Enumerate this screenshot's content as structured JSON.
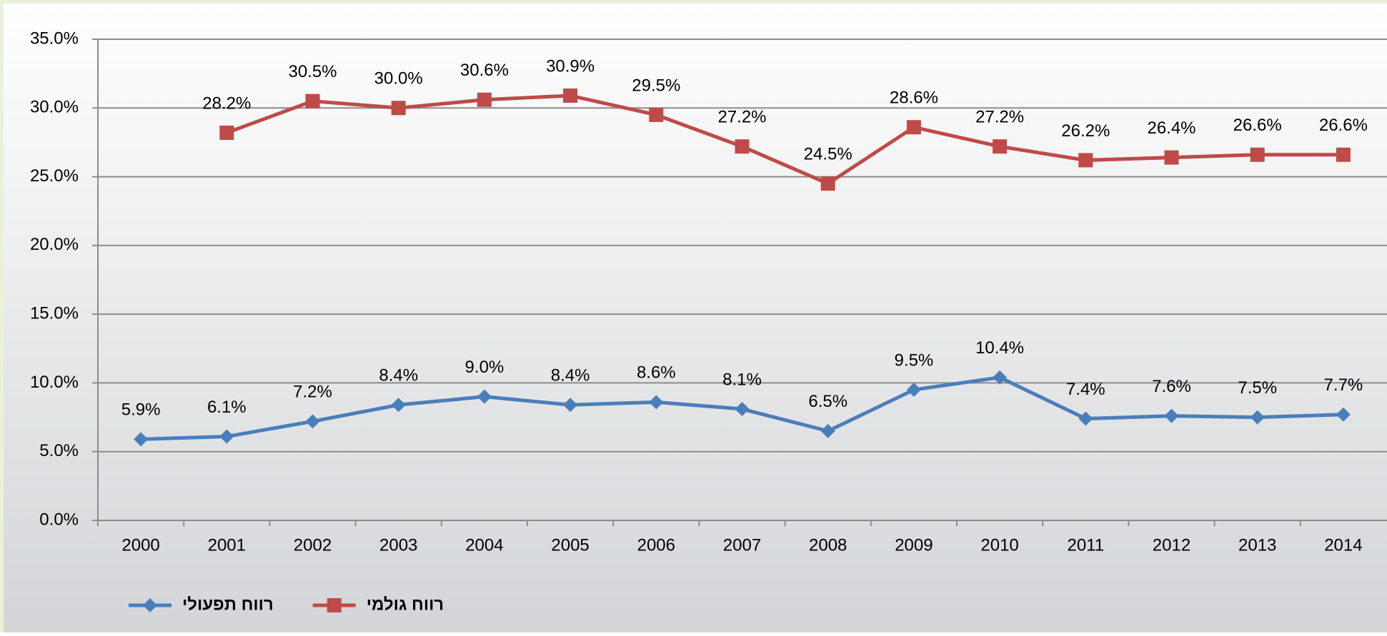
{
  "chart_data": {
    "type": "line",
    "categories": [
      "2000",
      "2001",
      "2002",
      "2003",
      "2004",
      "2005",
      "2006",
      "2007",
      "2008",
      "2009",
      "2010",
      "2011",
      "2012",
      "2013",
      "2014"
    ],
    "series": [
      {
        "name": "רווח תפעולי",
        "color": "#4a7ebb",
        "marker": "diamond",
        "values": [
          5.9,
          6.1,
          7.2,
          8.4,
          9.0,
          8.4,
          8.6,
          8.1,
          6.5,
          9.5,
          10.4,
          7.4,
          7.6,
          7.5,
          7.7
        ],
        "value_labels": [
          "5.9%",
          "6.1%",
          "7.2%",
          "8.4%",
          "9.0%",
          "8.4%",
          "8.6%",
          "8.1%",
          "6.5%",
          "9.5%",
          "10.4%",
          "7.4%",
          "7.6%",
          "7.5%",
          "7.7%"
        ]
      },
      {
        "name": "רווח גולמי",
        "color": "#be4b48",
        "marker": "square",
        "values": [
          null,
          28.2,
          30.5,
          30.0,
          30.6,
          30.9,
          29.5,
          27.2,
          24.5,
          28.6,
          27.2,
          26.2,
          26.4,
          26.6,
          26.6
        ],
        "value_labels": [
          null,
          "28.2%",
          "30.5%",
          "30.0%",
          "30.6%",
          "30.9%",
          "29.5%",
          "27.2%",
          "24.5%",
          "28.6%",
          "27.2%",
          "26.2%",
          "26.4%",
          "26.6%",
          "26.6%"
        ]
      }
    ],
    "ylim": [
      0,
      35
    ],
    "yticks": [
      {
        "value": 0,
        "label": "0.0%"
      },
      {
        "value": 5,
        "label": "5.0%"
      },
      {
        "value": 10,
        "label": "10.0%"
      },
      {
        "value": 15,
        "label": "15.0%"
      },
      {
        "value": 20,
        "label": "20.0%"
      },
      {
        "value": 25,
        "label": "25.0%"
      },
      {
        "value": 30,
        "label": "30.0%"
      },
      {
        "value": 35,
        "label": "35.0%"
      }
    ],
    "grid": true,
    "legend": "bottom-left"
  }
}
